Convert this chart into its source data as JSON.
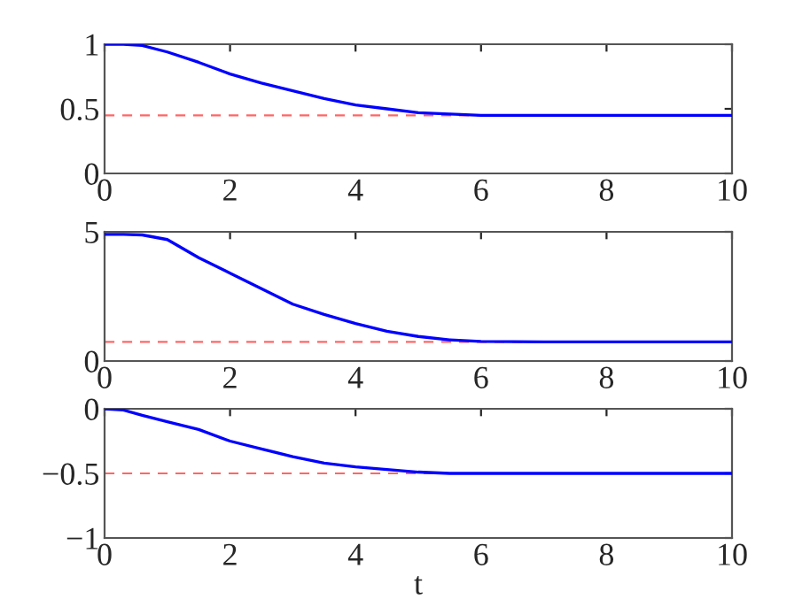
{
  "chart_data": [
    {
      "type": "line",
      "x": [
        0,
        0.3,
        0.6,
        1,
        1.5,
        2,
        2.5,
        3,
        3.5,
        4,
        4.5,
        5,
        5.5,
        6,
        7,
        8,
        9,
        10
      ],
      "series": [
        {
          "color": "#0000ff",
          "values": [
            1,
            1,
            0.99,
            0.94,
            0.86,
            0.77,
            0.7,
            0.64,
            0.58,
            0.53,
            0.5,
            0.47,
            0.46,
            0.45,
            0.45,
            0.45,
            0.45,
            0.45
          ]
        }
      ],
      "xlim": [
        0,
        10
      ],
      "xticks": [
        0,
        2,
        4,
        6,
        8,
        10
      ],
      "ylim": [
        0,
        1
      ],
      "yticks": [
        0,
        0.5,
        1
      ],
      "ref_lines": [
        {
          "axis": "y",
          "value": 0.45,
          "color": "#ff0000",
          "line_style": "dashed"
        }
      ]
    },
    {
      "type": "line",
      "x": [
        0,
        0.3,
        0.6,
        1,
        1.5,
        2,
        2.5,
        3,
        3.5,
        4,
        4.5,
        5,
        5.5,
        6,
        7,
        8,
        9,
        10
      ],
      "series": [
        {
          "color": "#0000ff",
          "values": [
            4.9,
            4.9,
            4.88,
            4.7,
            4.0,
            3.4,
            2.8,
            2.2,
            1.8,
            1.45,
            1.15,
            0.95,
            0.82,
            0.76,
            0.74,
            0.74,
            0.74,
            0.74
          ]
        }
      ],
      "xlim": [
        0,
        10
      ],
      "xticks": [
        0,
        2,
        4,
        6,
        8,
        10
      ],
      "ylim": [
        0,
        5
      ],
      "yticks": [
        0,
        5
      ],
      "ref_lines": [
        {
          "axis": "y",
          "value": 0.74,
          "color": "#ff0000",
          "line_style": "dashed"
        }
      ]
    },
    {
      "type": "line",
      "xlabel": "t",
      "x": [
        0,
        0.3,
        0.6,
        1,
        1.5,
        2,
        2.5,
        3,
        3.5,
        4,
        4.5,
        5,
        5.5,
        6,
        7,
        8,
        9,
        10
      ],
      "series": [
        {
          "color": "#0000ff",
          "values": [
            0,
            -0.01,
            -0.05,
            -0.1,
            -0.16,
            -0.25,
            -0.31,
            -0.37,
            -0.42,
            -0.45,
            -0.47,
            -0.49,
            -0.5,
            -0.5,
            -0.5,
            -0.5,
            -0.5,
            -0.5
          ]
        }
      ],
      "xlim": [
        0,
        10
      ],
      "xticks": [
        0,
        2,
        4,
        6,
        8,
        10
      ],
      "ylim": [
        -1,
        0
      ],
      "yticks": [
        {
          "value": -1,
          "label": "−1"
        },
        {
          "value": -0.5,
          "label": "−0.5"
        },
        0
      ],
      "ref_lines": [
        {
          "axis": "y",
          "value": -0.5,
          "color": "#ff0000",
          "line_style": "dashed"
        }
      ]
    }
  ]
}
